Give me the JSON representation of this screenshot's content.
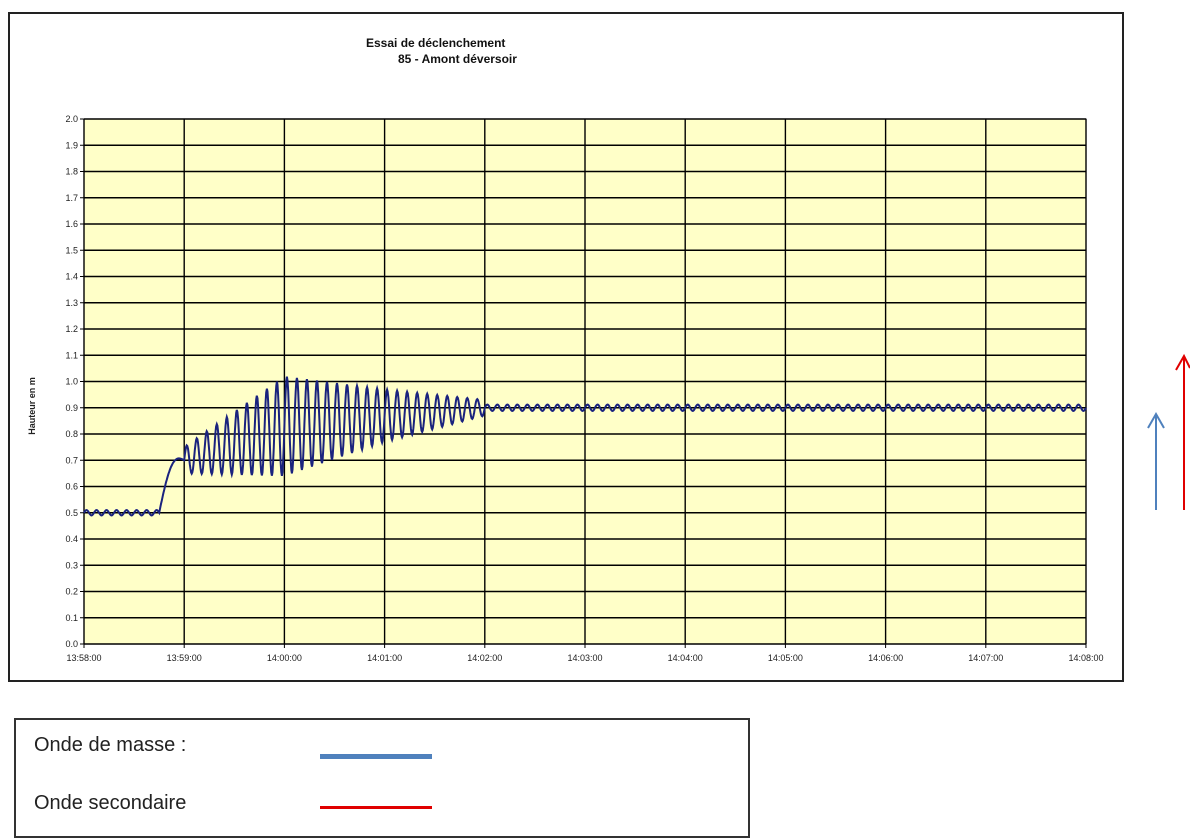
{
  "chart_data": {
    "type": "line",
    "title": [
      "Essai de déclenchement",
      "85 - Amont déversoir"
    ],
    "ylabel": "Hauteur en m",
    "xlabel": "",
    "ylim": [
      0.0,
      2.0
    ],
    "y_ticks": [
      "0.0",
      "0.1",
      "0.2",
      "0.3",
      "0.4",
      "0.5",
      "0.6",
      "0.7",
      "0.8",
      "0.9",
      "1.0",
      "1.1",
      "1.2",
      "1.3",
      "1.4",
      "1.5",
      "1.6",
      "1.7",
      "1.8",
      "1.9",
      "2.0"
    ],
    "x_ticks": [
      "13:58:00",
      "13:59:00",
      "14:00:00",
      "14:01:00",
      "14:02:00",
      "14:03:00",
      "14:04:00",
      "14:05:00",
      "14:06:00",
      "14:07:00",
      "14:08:00"
    ],
    "grid": true,
    "background": "#FFFFC8",
    "series": [
      {
        "color": "#1A237E",
        "x_unit": "minutes after 13:58:00",
        "segments": [
          {
            "from": 0.0,
            "to": 0.75,
            "base": 0.5,
            "amp": 0.01,
            "period": 0.1
          },
          {
            "from": 0.75,
            "to": 1.0,
            "rise_to": 0.7
          },
          {
            "from": 1.0,
            "to": 2.0,
            "base_from": 0.7,
            "base_to": 0.83,
            "amp_from": 0.05,
            "amp_to": 0.19,
            "period": 0.1
          },
          {
            "from": 2.0,
            "to": 3.0,
            "base_from": 0.83,
            "base_to": 0.87,
            "amp_from": 0.19,
            "amp_to": 0.1,
            "period": 0.1
          },
          {
            "from": 3.0,
            "to": 4.0,
            "base_from": 0.87,
            "base_to": 0.9,
            "amp_from": 0.1,
            "amp_to": 0.03,
            "period": 0.1
          },
          {
            "from": 4.0,
            "to": 10.0,
            "base": 0.9,
            "amp": 0.012,
            "period": 0.1
          }
        ]
      }
    ]
  },
  "legend": {
    "items": [
      {
        "label": "Onde  de masse :",
        "color": "#4F81BD"
      },
      {
        "label": "Onde secondaire",
        "color": "#E00000"
      }
    ]
  },
  "arrows": {
    "blue_color": "#4F81BD",
    "red_color": "#E00000"
  }
}
